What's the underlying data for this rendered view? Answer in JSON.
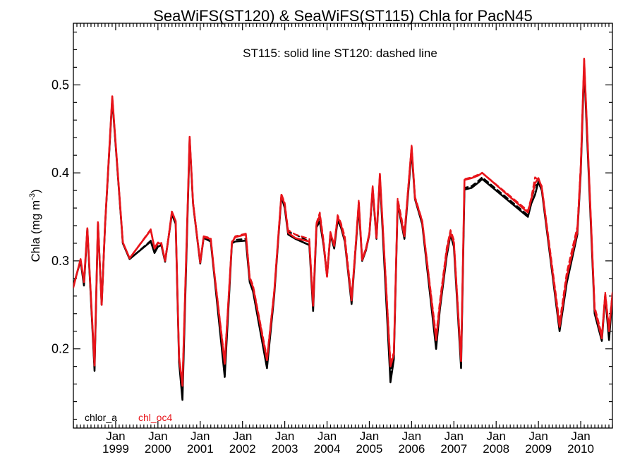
{
  "chart_data": {
    "type": "line",
    "title": "SeaWiFS(ST120) & SeaWiFS(ST115)  Chla for PacN45",
    "annotation": "ST115: solid line   ST120: dashed line",
    "ylabel_main": "Chla (mg m",
    "ylabel_sup": "-3",
    "ylabel_close": ")",
    "xlabel": "",
    "xlim": [
      1998.0,
      2010.75
    ],
    "ylim": [
      0.11,
      0.57
    ],
    "grid": false,
    "yticks": [
      0.2,
      0.3,
      0.4,
      0.5
    ],
    "ytick_labels": [
      "0.2",
      "0.3",
      "0.4",
      "0.5"
    ],
    "xticks": [
      {
        "x": 1999.0,
        "month": "Jan",
        "year": "1999"
      },
      {
        "x": 2000.0,
        "month": "Jan",
        "year": "2000"
      },
      {
        "x": 2001.0,
        "month": "Jan",
        "year": "2001"
      },
      {
        "x": 2002.0,
        "month": "Jan",
        "year": "2002"
      },
      {
        "x": 2003.0,
        "month": "Jan",
        "year": "2003"
      },
      {
        "x": 2004.0,
        "month": "Jan",
        "year": "2004"
      },
      {
        "x": 2005.0,
        "month": "Jan",
        "year": "2005"
      },
      {
        "x": 2006.0,
        "month": "Jan",
        "year": "2006"
      },
      {
        "x": 2007.0,
        "month": "Jan",
        "year": "2007"
      },
      {
        "x": 2008.0,
        "month": "Jan",
        "year": "2008"
      },
      {
        "x": 2009.0,
        "month": "Jan",
        "year": "2009"
      },
      {
        "x": 2010.0,
        "month": "Jan",
        "year": "2010"
      }
    ],
    "legend": [
      {
        "name": "chlor_a",
        "color": "#000000"
      },
      {
        "name": "chl_oc4",
        "color": "#e8141a"
      }
    ],
    "legend_position": "bottom-left",
    "series": [
      {
        "name": "chlor_a",
        "variant": "ST115",
        "color": "#000000",
        "dash": "solid",
        "x": [
          1998.0,
          1998.17,
          1998.25,
          1998.33,
          1998.5,
          1998.58,
          1998.67,
          1998.75,
          1998.92,
          1999.17,
          1999.33,
          1999.83,
          1999.92,
          2000.0,
          2000.08,
          2000.17,
          2000.25,
          2000.33,
          2000.42,
          2000.5,
          2000.58,
          2000.75,
          2000.83,
          2001.0,
          2001.08,
          2001.25,
          2001.33,
          2001.58,
          2001.75,
          2001.83,
          2002.08,
          2002.17,
          2002.25,
          2002.58,
          2002.75,
          2002.92,
          2003.0,
          2003.08,
          2003.25,
          2003.58,
          2003.67,
          2003.75,
          2003.83,
          2003.92,
          2004.0,
          2004.08,
          2004.17,
          2004.25,
          2004.33,
          2004.42,
          2004.58,
          2004.67,
          2004.75,
          2004.83,
          2004.92,
          2005.0,
          2005.08,
          2005.17,
          2005.25,
          2005.5,
          2005.58,
          2005.67,
          2005.83,
          2006.0,
          2006.08,
          2006.25,
          2006.58,
          2006.67,
          2006.83,
          2006.92,
          2007.0,
          2007.17,
          2007.25,
          2007.42,
          2007.58,
          2007.67,
          2008.75,
          2008.83,
          2008.92,
          2009.0,
          2009.08,
          2009.5,
          2009.67,
          2009.92,
          2010.0,
          2010.08,
          2010.33,
          2010.5,
          2010.58,
          2010.67,
          2010.75
        ],
        "y": [
          0.272,
          0.3,
          0.272,
          0.336,
          0.175,
          0.343,
          0.25,
          0.34,
          0.484,
          0.32,
          0.302,
          0.322,
          0.309,
          0.316,
          0.318,
          0.299,
          0.326,
          0.353,
          0.342,
          0.185,
          0.142,
          0.438,
          0.365,
          0.297,
          0.326,
          0.322,
          0.285,
          0.168,
          0.32,
          0.322,
          0.323,
          0.276,
          0.265,
          0.178,
          0.26,
          0.373,
          0.36,
          0.33,
          0.325,
          0.318,
          0.243,
          0.338,
          0.345,
          0.317,
          0.283,
          0.33,
          0.314,
          0.346,
          0.338,
          0.322,
          0.251,
          0.31,
          0.362,
          0.3,
          0.312,
          0.33,
          0.381,
          0.325,
          0.395,
          0.162,
          0.188,
          0.365,
          0.325,
          0.425,
          0.37,
          0.342,
          0.2,
          0.245,
          0.305,
          0.33,
          0.316,
          0.178,
          0.381,
          0.383,
          0.389,
          0.393,
          0.35,
          0.365,
          0.375,
          0.39,
          0.38,
          0.22,
          0.275,
          0.33,
          0.4,
          0.52,
          0.24,
          0.209,
          0.26,
          0.21,
          0.26
        ]
      },
      {
        "name": "chlor_a",
        "variant": "ST120",
        "color": "#000000",
        "dash": "dashed",
        "x": [
          1998.0,
          1998.17,
          1998.25,
          1998.33,
          1998.5,
          1998.58,
          1998.67,
          1998.75,
          1998.92,
          1999.17,
          1999.33,
          1999.83,
          1999.92,
          2000.0,
          2000.08,
          2000.17,
          2000.25,
          2000.33,
          2000.42,
          2000.5,
          2000.58,
          2000.75,
          2000.83,
          2001.0,
          2001.08,
          2001.25,
          2001.33,
          2001.58,
          2001.75,
          2001.83,
          2002.08,
          2002.17,
          2002.25,
          2002.58,
          2002.75,
          2002.92,
          2003.0,
          2003.08,
          2003.25,
          2003.58,
          2003.67,
          2003.75,
          2003.83,
          2003.92,
          2004.0,
          2004.08,
          2004.17,
          2004.25,
          2004.33,
          2004.42,
          2004.58,
          2004.67,
          2004.75,
          2004.83,
          2004.92,
          2005.0,
          2005.08,
          2005.17,
          2005.25,
          2005.5,
          2005.58,
          2005.67,
          2005.83,
          2006.0,
          2006.08,
          2006.25,
          2006.58,
          2006.67,
          2006.83,
          2006.92,
          2007.0,
          2007.17,
          2007.25,
          2007.42,
          2007.58,
          2007.67,
          2008.75,
          2008.83,
          2008.92,
          2009.0,
          2009.08,
          2009.5,
          2009.67,
          2009.92,
          2010.0,
          2010.08,
          2010.33,
          2010.5,
          2010.58,
          2010.67,
          2010.75
        ],
        "y": [
          0.272,
          0.3,
          0.273,
          0.336,
          0.177,
          0.343,
          0.251,
          0.34,
          0.484,
          0.32,
          0.302,
          0.323,
          0.311,
          0.317,
          0.319,
          0.3,
          0.327,
          0.354,
          0.343,
          0.186,
          0.15,
          0.439,
          0.366,
          0.298,
          0.327,
          0.323,
          0.287,
          0.176,
          0.321,
          0.324,
          0.325,
          0.279,
          0.268,
          0.184,
          0.262,
          0.374,
          0.362,
          0.333,
          0.33,
          0.322,
          0.246,
          0.341,
          0.35,
          0.321,
          0.284,
          0.331,
          0.316,
          0.349,
          0.341,
          0.326,
          0.256,
          0.313,
          0.364,
          0.302,
          0.314,
          0.331,
          0.382,
          0.326,
          0.396,
          0.171,
          0.192,
          0.368,
          0.329,
          0.427,
          0.372,
          0.343,
          0.207,
          0.25,
          0.312,
          0.333,
          0.32,
          0.182,
          0.383,
          0.385,
          0.391,
          0.395,
          0.352,
          0.368,
          0.385,
          0.388,
          0.381,
          0.225,
          0.28,
          0.336,
          0.405,
          0.522,
          0.245,
          0.213,
          0.262,
          0.214,
          0.262
        ]
      },
      {
        "name": "chl_oc4",
        "variant": "ST115",
        "color": "#e8141a",
        "dash": "solid",
        "x": [
          1998.0,
          1998.17,
          1998.25,
          1998.33,
          1998.5,
          1998.58,
          1998.67,
          1998.75,
          1998.92,
          1999.17,
          1999.33,
          1999.83,
          1999.92,
          2000.0,
          2000.08,
          2000.17,
          2000.25,
          2000.33,
          2000.42,
          2000.5,
          2000.58,
          2000.75,
          2000.83,
          2001.0,
          2001.08,
          2001.25,
          2001.33,
          2001.58,
          2001.75,
          2001.83,
          2002.08,
          2002.17,
          2002.25,
          2002.58,
          2002.75,
          2002.92,
          2003.0,
          2003.08,
          2003.25,
          2003.58,
          2003.67,
          2003.75,
          2003.83,
          2003.92,
          2004.0,
          2004.08,
          2004.17,
          2004.25,
          2004.33,
          2004.42,
          2004.58,
          2004.67,
          2004.75,
          2004.83,
          2004.92,
          2005.0,
          2005.08,
          2005.17,
          2005.25,
          2005.5,
          2005.58,
          2005.67,
          2005.83,
          2006.0,
          2006.08,
          2006.25,
          2006.58,
          2006.67,
          2006.83,
          2006.92,
          2007.0,
          2007.17,
          2007.25,
          2007.42,
          2007.58,
          2007.67,
          2008.75,
          2008.83,
          2008.92,
          2009.0,
          2009.08,
          2009.5,
          2009.67,
          2009.92,
          2010.0,
          2010.08,
          2010.33,
          2010.5,
          2010.58,
          2010.67,
          2010.75
        ],
        "y": [
          0.27,
          0.302,
          0.276,
          0.337,
          0.181,
          0.344,
          0.25,
          0.341,
          0.487,
          0.321,
          0.303,
          0.335,
          0.314,
          0.32,
          0.32,
          0.3,
          0.326,
          0.356,
          0.345,
          0.19,
          0.158,
          0.441,
          0.366,
          0.298,
          0.327,
          0.325,
          0.288,
          0.183,
          0.321,
          0.327,
          0.33,
          0.28,
          0.27,
          0.187,
          0.264,
          0.375,
          0.364,
          0.332,
          0.326,
          0.322,
          0.249,
          0.341,
          0.352,
          0.319,
          0.282,
          0.332,
          0.317,
          0.35,
          0.341,
          0.324,
          0.255,
          0.312,
          0.367,
          0.301,
          0.313,
          0.331,
          0.384,
          0.326,
          0.399,
          0.18,
          0.194,
          0.368,
          0.328,
          0.43,
          0.371,
          0.345,
          0.21,
          0.25,
          0.31,
          0.332,
          0.321,
          0.186,
          0.392,
          0.394,
          0.397,
          0.4,
          0.355,
          0.37,
          0.388,
          0.394,
          0.383,
          0.225,
          0.282,
          0.333,
          0.405,
          0.529,
          0.245,
          0.212,
          0.262,
          0.22,
          0.262
        ]
      },
      {
        "name": "chl_oc4",
        "variant": "ST120",
        "color": "#e8141a",
        "dash": "dashed",
        "x": [
          1998.0,
          1998.17,
          1998.25,
          1998.33,
          1998.5,
          1998.58,
          1998.67,
          1998.75,
          1998.92,
          1999.17,
          1999.33,
          1999.83,
          1999.92,
          2000.0,
          2000.08,
          2000.17,
          2000.25,
          2000.33,
          2000.42,
          2000.5,
          2000.58,
          2000.75,
          2000.83,
          2001.0,
          2001.08,
          2001.25,
          2001.33,
          2001.58,
          2001.75,
          2001.83,
          2002.08,
          2002.17,
          2002.25,
          2002.58,
          2002.75,
          2002.92,
          2003.0,
          2003.08,
          2003.25,
          2003.58,
          2003.67,
          2003.75,
          2003.83,
          2003.92,
          2004.0,
          2004.08,
          2004.17,
          2004.25,
          2004.33,
          2004.42,
          2004.58,
          2004.67,
          2004.75,
          2004.83,
          2004.92,
          2005.0,
          2005.08,
          2005.17,
          2005.25,
          2005.5,
          2005.58,
          2005.67,
          2005.83,
          2006.0,
          2006.08,
          2006.25,
          2006.58,
          2006.67,
          2006.83,
          2006.92,
          2007.0,
          2007.17,
          2007.25,
          2007.42,
          2007.58,
          2007.67,
          2008.75,
          2008.83,
          2008.92,
          2009.0,
          2009.08,
          2009.5,
          2009.67,
          2009.92,
          2010.0,
          2010.08,
          2010.33,
          2010.5,
          2010.58,
          2010.67,
          2010.75
        ],
        "y": [
          0.27,
          0.302,
          0.276,
          0.337,
          0.181,
          0.344,
          0.251,
          0.341,
          0.487,
          0.321,
          0.303,
          0.336,
          0.315,
          0.321,
          0.321,
          0.301,
          0.327,
          0.356,
          0.346,
          0.191,
          0.162,
          0.441,
          0.367,
          0.299,
          0.328,
          0.326,
          0.289,
          0.187,
          0.322,
          0.328,
          0.331,
          0.282,
          0.272,
          0.19,
          0.266,
          0.376,
          0.366,
          0.335,
          0.33,
          0.325,
          0.252,
          0.343,
          0.355,
          0.323,
          0.283,
          0.333,
          0.318,
          0.352,
          0.343,
          0.328,
          0.259,
          0.315,
          0.369,
          0.302,
          0.315,
          0.332,
          0.385,
          0.327,
          0.399,
          0.185,
          0.196,
          0.371,
          0.332,
          0.431,
          0.373,
          0.346,
          0.215,
          0.255,
          0.315,
          0.335,
          0.324,
          0.189,
          0.393,
          0.395,
          0.398,
          0.4,
          0.357,
          0.372,
          0.395,
          0.392,
          0.385,
          0.23,
          0.287,
          0.339,
          0.41,
          0.53,
          0.248,
          0.216,
          0.264,
          0.224,
          0.264
        ]
      }
    ]
  }
}
